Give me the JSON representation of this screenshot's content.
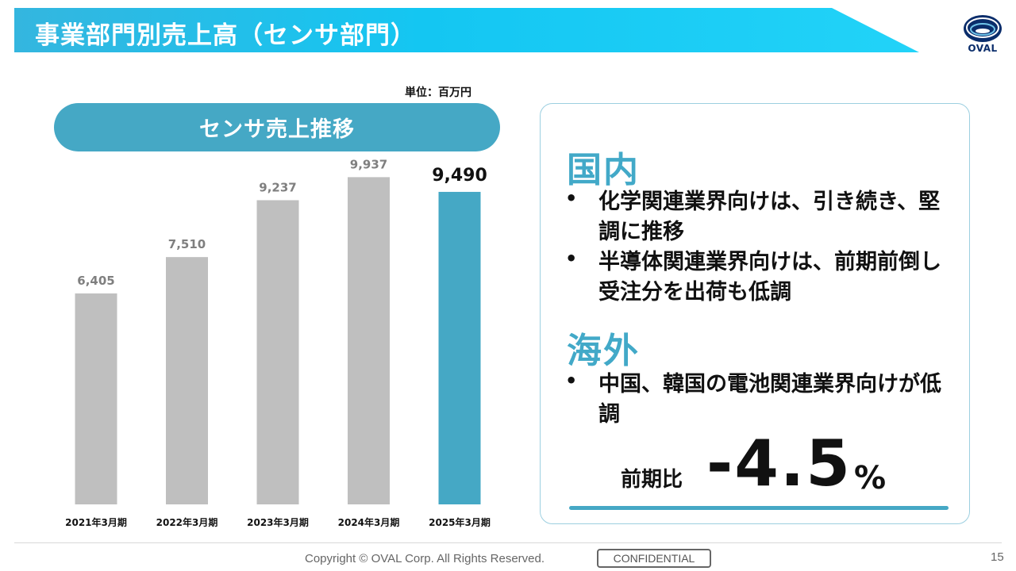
{
  "header": {
    "title": "事業部門別売上高（センサ部門）"
  },
  "logo": {
    "text": "OVAL"
  },
  "unit_label": "単位：百万円",
  "chart_title": "センサ売上推移",
  "chart_data": {
    "type": "bar",
    "title": "センサ売上推移",
    "unit": "単位：百万円",
    "categories": [
      "2021年3月期",
      "2022年3月期",
      "2023年3月期",
      "2024年3月期",
      "2025年3月期"
    ],
    "values": [
      6405,
      7510,
      9237,
      9937,
      9490
    ],
    "data_labels": [
      "6,405",
      "7,510",
      "9,237",
      "9,937",
      "9,490"
    ],
    "highlight_index": 4,
    "colors": {
      "default": "#bfbfbf",
      "highlight": "#45a8c5",
      "label_default": "#7f7f7f",
      "label_highlight": "#111111"
    },
    "grid": false,
    "ylim": [
      0,
      10500
    ]
  },
  "panel": {
    "domestic": {
      "heading": "国内",
      "bullets": [
        "化学関連業界向けは、引き続き、堅調に推移",
        "半導体関連業界向けは、前期前倒し受注分を出荷も低調"
      ]
    },
    "overseas": {
      "heading": "海外",
      "bullets": [
        "中国、韓国の電池関連業界向けが低調"
      ]
    },
    "yoy": {
      "label": "前期比",
      "value": "-4.5",
      "unit": "%"
    }
  },
  "footer": {
    "copyright": "Copyright © OVAL Corp. All Rights Reserved.",
    "confidential": "CONFIDENTIAL",
    "page": "15"
  },
  "theme": {
    "accent": "#45a8c5",
    "banner": "#14c6f2"
  }
}
